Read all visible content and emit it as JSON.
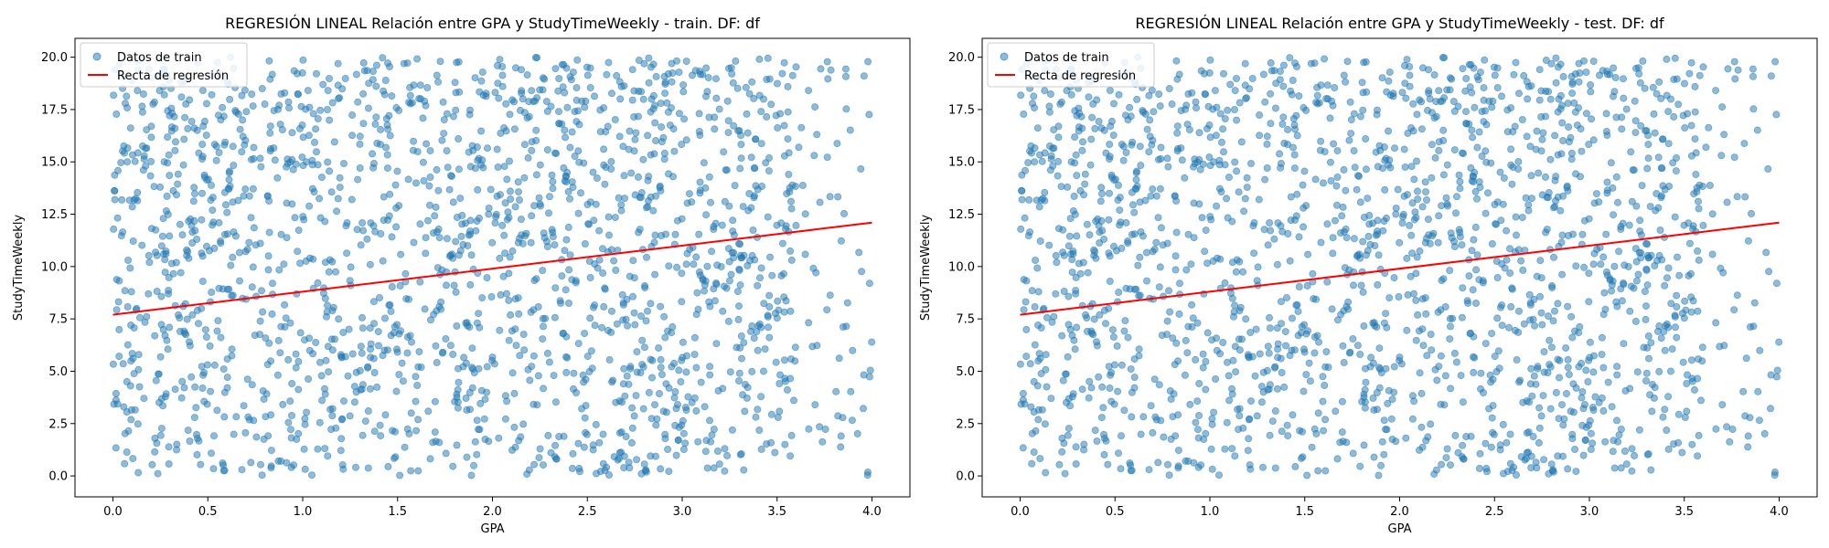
{
  "chart_data": [
    {
      "type": "scatter",
      "title": "REGRESIÓN LINEAL Relación entre GPA y StudyTimeWeekly - train. DF: df",
      "xlabel": "GPA",
      "ylabel": "StudyTimeWeekly",
      "xlim": [
        -0.2,
        4.2
      ],
      "ylim": [
        -1.0,
        20.9
      ],
      "xticks": [
        0.0,
        0.5,
        1.0,
        1.5,
        2.0,
        2.5,
        3.0,
        3.5,
        4.0
      ],
      "yticks": [
        0.0,
        2.5,
        5.0,
        7.5,
        10.0,
        12.5,
        15.0,
        17.5,
        20.0
      ],
      "xtick_labels": [
        "0.0",
        "0.5",
        "1.0",
        "1.5",
        "2.0",
        "2.5",
        "3.0",
        "3.5",
        "4.0"
      ],
      "ytick_labels": [
        "0.0",
        "2.5",
        "5.0",
        "7.5",
        "10.0",
        "12.5",
        "15.0",
        "17.5",
        "20.0"
      ],
      "grid": false,
      "legend_position": "top-left",
      "series": [
        {
          "name": "Datos de train",
          "kind": "scatter",
          "color": "#1f77b4",
          "x_range": [
            0.0,
            4.0
          ],
          "y_range": [
            0.0,
            20.0
          ],
          "approx_count": 1900
        },
        {
          "name": "Recta de regresión",
          "kind": "line",
          "color": "#ff0000",
          "x": [
            0.0,
            4.0
          ],
          "y": [
            7.7,
            12.1
          ]
        }
      ]
    },
    {
      "type": "scatter",
      "title": "REGRESIÓN LINEAL Relación entre GPA y StudyTimeWeekly - test. DF: df",
      "xlabel": "GPA",
      "ylabel": "StudyTimeWeekly",
      "xlim": [
        -0.2,
        4.2
      ],
      "ylim": [
        -1.0,
        20.9
      ],
      "xticks": [
        0.0,
        0.5,
        1.0,
        1.5,
        2.0,
        2.5,
        3.0,
        3.5,
        4.0
      ],
      "yticks": [
        0.0,
        2.5,
        5.0,
        7.5,
        10.0,
        12.5,
        15.0,
        17.5,
        20.0
      ],
      "xtick_labels": [
        "0.0",
        "0.5",
        "1.0",
        "1.5",
        "2.0",
        "2.5",
        "3.0",
        "3.5",
        "4.0"
      ],
      "ytick_labels": [
        "0.0",
        "2.5",
        "5.0",
        "7.5",
        "10.0",
        "12.5",
        "15.0",
        "17.5",
        "20.0"
      ],
      "grid": false,
      "legend_position": "top-left",
      "series": [
        {
          "name": "Datos de train",
          "kind": "scatter",
          "color": "#1f77b4",
          "x_range": [
            0.0,
            4.0
          ],
          "y_range": [
            0.0,
            20.0
          ],
          "approx_count": 1900
        },
        {
          "name": "Recta de regresión",
          "kind": "line",
          "color": "#ff0000",
          "x": [
            0.0,
            4.0
          ],
          "y": [
            7.7,
            12.1
          ]
        }
      ]
    }
  ]
}
